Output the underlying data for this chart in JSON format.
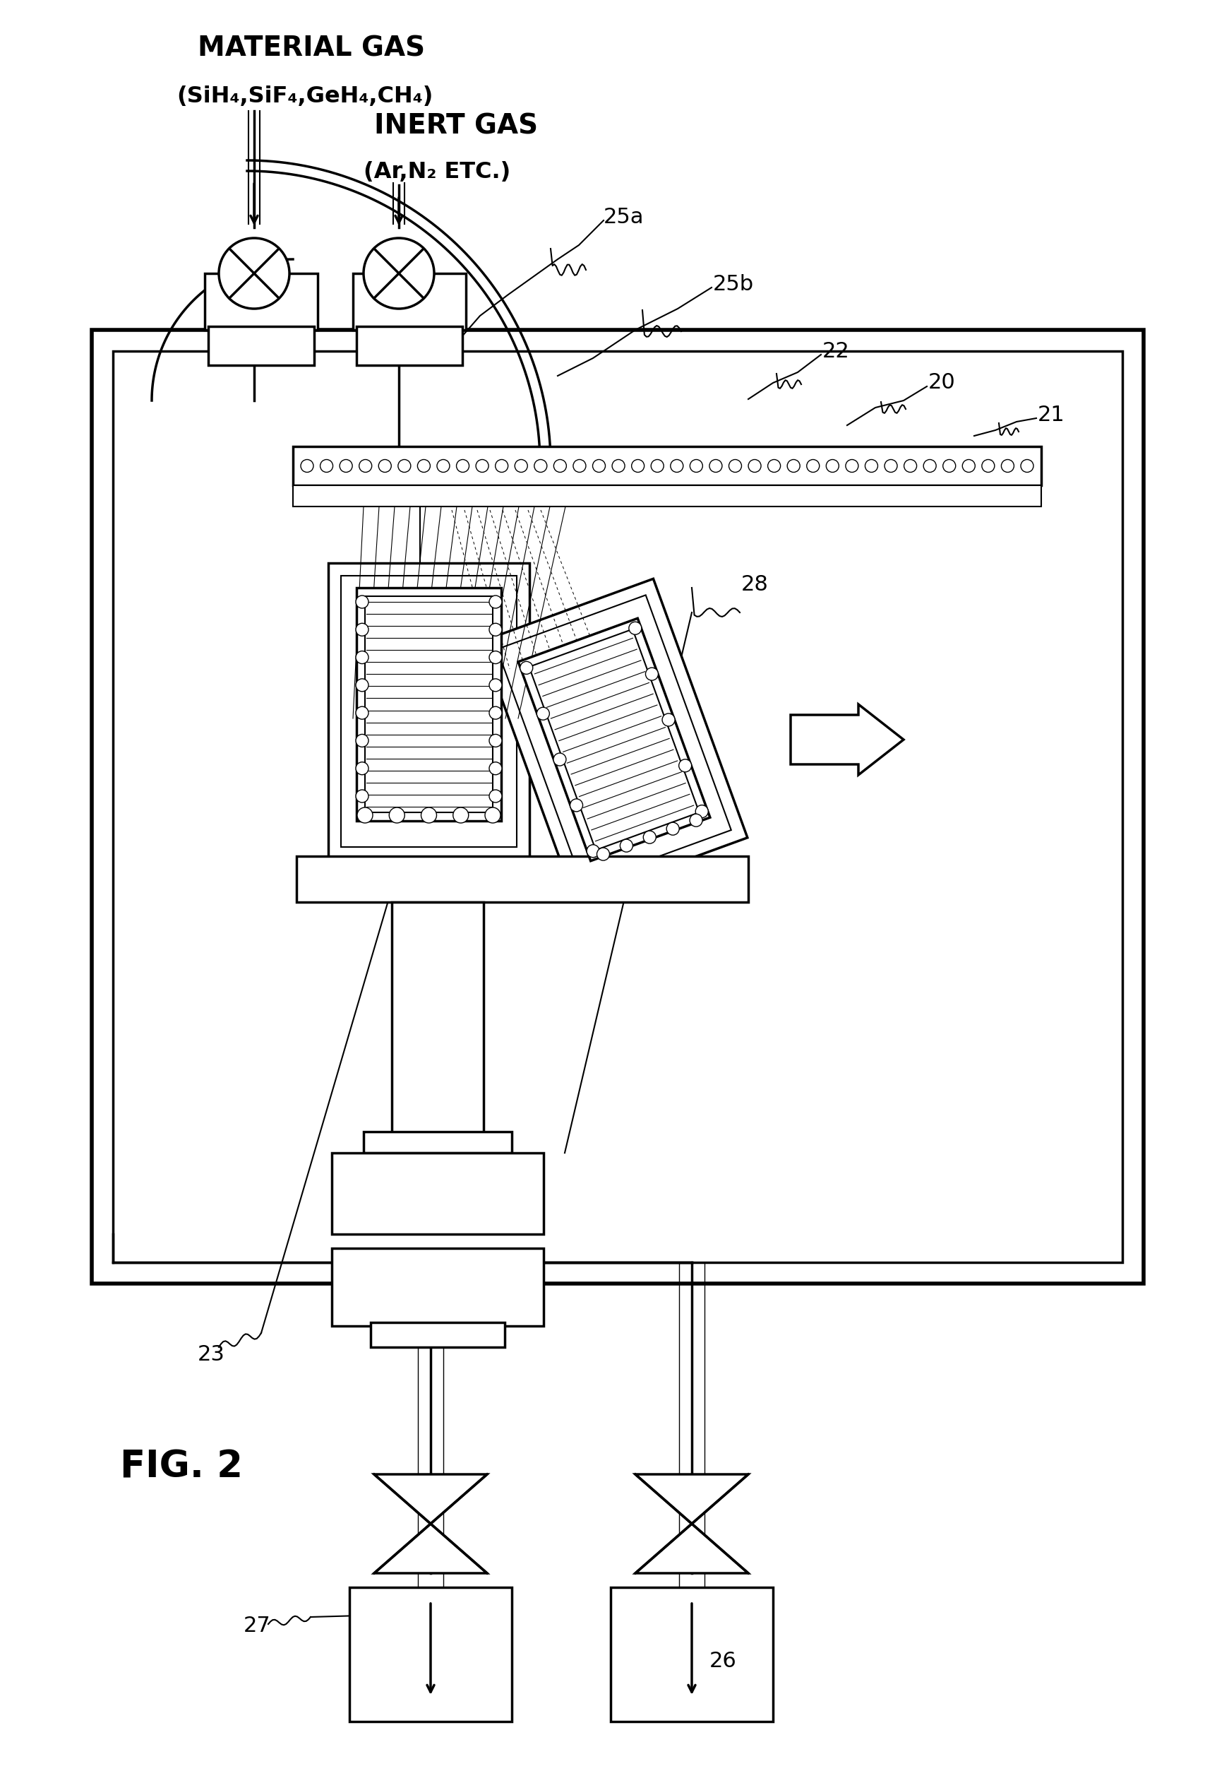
{
  "fig_label": "FIG. 2",
  "labels": {
    "material_gas_title": "MATERIAL GAS",
    "material_gas_sub": "(SiH₄,SiF₄,GeH₄,CH₄)",
    "inert_gas_title": "INERT GAS",
    "inert_gas_sub": "(Ar,N₂ ETC.)",
    "label_25a": "25a",
    "label_25b": "25b",
    "label_22": "22",
    "label_20": "20",
    "label_21": "21",
    "label_28": "28",
    "label_23": "23",
    "label_27": "27",
    "label_26": "26"
  },
  "bg_color": "#ffffff",
  "line_color": "#000000"
}
